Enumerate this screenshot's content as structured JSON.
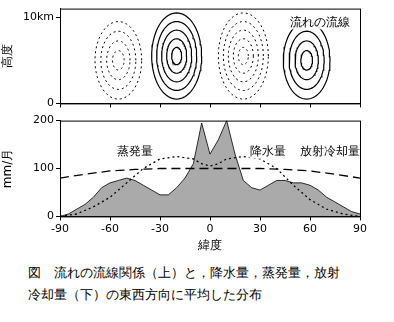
{
  "chart_data": [
    {
      "type": "streamline",
      "ylabel": "高度",
      "xlim": [
        -90,
        90
      ],
      "xticks": [
        -90,
        -60,
        -30,
        0,
        30,
        60,
        90
      ],
      "ylim": [
        0,
        11
      ],
      "yticks": [
        0,
        {
          "value": 10,
          "label": "10km"
        }
      ],
      "tick_labels": "y",
      "grid": false,
      "annotations": [
        {
          "text": "流れの流線",
          "x": 66,
          "y": 9.4
        }
      ],
      "cells": [
        {
          "lat": -55,
          "height": 5,
          "lat_halfwidth": 14,
          "height_halfwidth": 4.5,
          "levels": 4,
          "line_style": "dotted"
        },
        {
          "lat": -20,
          "height": 5.5,
          "lat_halfwidth": 15,
          "height_halfwidth": 5,
          "levels": 5,
          "line_style": "solid"
        },
        {
          "lat": 20,
          "height": 5.5,
          "lat_halfwidth": 15,
          "height_halfwidth": 5,
          "levels": 5,
          "line_style": "dotted"
        },
        {
          "lat": 58,
          "height": 5,
          "lat_halfwidth": 14,
          "height_halfwidth": 4.5,
          "levels": 4,
          "line_style": "solid"
        }
      ]
    },
    {
      "type": "line",
      "xlabel": "緯度",
      "ylabel": "mm/月",
      "xlim": [
        -90,
        90
      ],
      "xticks": [
        -90,
        -60,
        -30,
        0,
        30,
        60,
        90
      ],
      "ylim": [
        0,
        200
      ],
      "yticks": [
        0,
        100,
        200
      ],
      "grid": false,
      "series": [
        {
          "name": "降水量",
          "type": "area",
          "color": "#aaaaaa",
          "line_style": "solid",
          "x": [
            -90,
            -85,
            -80,
            -75,
            -70,
            -65,
            -60,
            -55,
            -50,
            -45,
            -40,
            -35,
            -30,
            -25,
            -20,
            -15,
            -10,
            -5,
            0,
            5,
            10,
            15,
            20,
            25,
            30,
            35,
            40,
            45,
            50,
            55,
            60,
            65,
            70,
            75,
            80,
            85,
            90
          ],
          "values": [
            0,
            5,
            15,
            25,
            40,
            60,
            70,
            75,
            80,
            75,
            65,
            55,
            45,
            45,
            60,
            80,
            110,
            195,
            130,
            160,
            200,
            130,
            75,
            60,
            55,
            65,
            75,
            75,
            70,
            70,
            65,
            55,
            40,
            30,
            20,
            10,
            5
          ]
        },
        {
          "name": "蒸発量",
          "type": "line",
          "color": "#000000",
          "line_style": "dotted",
          "x": [
            -90,
            -80,
            -70,
            -60,
            -50,
            -40,
            -30,
            -20,
            -10,
            -5,
            0,
            5,
            10,
            20,
            30,
            40,
            50,
            60,
            70,
            80,
            90
          ],
          "values": [
            0,
            5,
            20,
            40,
            70,
            100,
            120,
            125,
            120,
            110,
            105,
            110,
            120,
            125,
            120,
            100,
            65,
            35,
            15,
            5,
            0
          ]
        },
        {
          "name": "放射冷却量",
          "type": "line",
          "color": "#000000",
          "line_style": "dashed",
          "x": [
            -90,
            -75,
            -60,
            -45,
            -30,
            -15,
            0,
            15,
            30,
            45,
            60,
            75,
            90
          ],
          "values": [
            80,
            88,
            95,
            98,
            100,
            100,
            100,
            100,
            100,
            98,
            95,
            88,
            80
          ]
        }
      ],
      "annotations": [
        {
          "text": "蒸発量",
          "x": -45,
          "y": 135
        },
        {
          "text": "降水量",
          "x": 35,
          "y": 135
        },
        {
          "text": "放射冷却量",
          "x": 72,
          "y": 135
        }
      ]
    }
  ],
  "caption": [
    "図　流れの流線関係（上）と，降水量，蒸発量，放射",
    "冷却量（下）の東西方向に平均した分布"
  ]
}
